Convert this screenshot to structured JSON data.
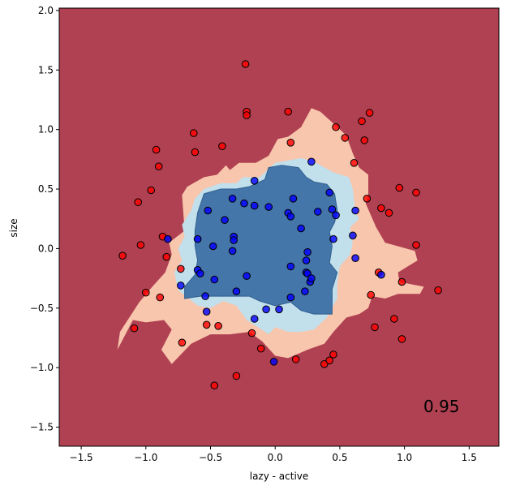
{
  "chart_data": {
    "type": "scatter",
    "title": "",
    "xlabel": "lazy - active",
    "ylabel": "size",
    "xlim": [
      -1.67,
      1.73
    ],
    "ylim": [
      -1.66,
      2.02
    ],
    "xticks": [
      -1.5,
      -1.0,
      -0.5,
      0.0,
      0.5,
      1.0,
      1.5
    ],
    "yticks": [
      -1.5,
      -1.0,
      -0.5,
      0.0,
      0.5,
      1.0,
      1.5,
      2.0
    ],
    "xtick_labels": [
      "−1.5",
      "−1.0",
      "−0.5",
      "0.0",
      "0.5",
      "1.0",
      "1.5"
    ],
    "ytick_labels": [
      "−1.5",
      "−1.0",
      "−0.5",
      "0.0",
      "0.5",
      "1.0",
      "1.5",
      "2.0"
    ],
    "annotation": "0.95",
    "grid": false,
    "colors": {
      "background_region": "#b04152",
      "outer_region": "#f8c5ad",
      "inner_light_region": "#c2dfec",
      "core_region": "#4576a9",
      "red_points": "#ff0000",
      "blue_points": "#0000ff"
    },
    "decision_regions": [
      {
        "level": "outer",
        "polygon": [
          [
            0.1,
            0.94
          ],
          [
            0.2,
            1.02
          ],
          [
            0.28,
            1.18
          ],
          [
            0.35,
            1.15
          ],
          [
            0.45,
            1.05
          ],
          [
            0.55,
            0.95
          ],
          [
            0.6,
            0.8
          ],
          [
            0.65,
            0.68
          ],
          [
            0.72,
            0.62
          ],
          [
            0.72,
            0.45
          ],
          [
            0.7,
            0.38
          ],
          [
            0.78,
            0.18
          ],
          [
            0.85,
            0.05
          ],
          [
            1.08,
            -0.02
          ],
          [
            1.1,
            -0.1
          ],
          [
            0.95,
            -0.2
          ],
          [
            0.96,
            -0.28
          ],
          [
            1.15,
            -0.32
          ],
          [
            1.12,
            -0.38
          ],
          [
            0.95,
            -0.38
          ],
          [
            0.85,
            -0.42
          ],
          [
            0.75,
            -0.4
          ],
          [
            0.72,
            -0.5
          ],
          [
            0.65,
            -0.55
          ],
          [
            0.55,
            -0.58
          ],
          [
            0.45,
            -0.7
          ],
          [
            0.38,
            -0.8
          ],
          [
            0.25,
            -0.85
          ],
          [
            0.1,
            -0.92
          ],
          [
            0.0,
            -0.9
          ],
          [
            -0.1,
            -0.78
          ],
          [
            -0.2,
            -0.7
          ],
          [
            -0.35,
            -0.72
          ],
          [
            -0.5,
            -0.72
          ],
          [
            -0.65,
            -0.8
          ],
          [
            -0.8,
            -0.97
          ],
          [
            -0.88,
            -0.85
          ],
          [
            -0.8,
            -0.68
          ],
          [
            -0.86,
            -0.6
          ],
          [
            -1.0,
            -0.62
          ],
          [
            -1.1,
            -0.6
          ],
          [
            -1.22,
            -0.85
          ],
          [
            -1.2,
            -0.7
          ],
          [
            -1.05,
            -0.45
          ],
          [
            -0.95,
            -0.32
          ],
          [
            -0.85,
            -0.2
          ],
          [
            -0.8,
            -0.05
          ],
          [
            -0.82,
            0.05
          ],
          [
            -0.7,
            0.15
          ],
          [
            -0.72,
            0.45
          ],
          [
            -0.68,
            0.52
          ],
          [
            -0.55,
            0.6
          ],
          [
            -0.45,
            0.62
          ],
          [
            -0.38,
            0.7
          ],
          [
            -0.35,
            0.66
          ],
          [
            -0.28,
            0.72
          ],
          [
            -0.15,
            0.72
          ],
          [
            -0.05,
            0.78
          ],
          [
            0.02,
            0.92
          ]
        ]
      },
      {
        "level": "inner",
        "polygon": [
          [
            -0.12,
            0.6
          ],
          [
            0.0,
            0.72
          ],
          [
            0.2,
            0.76
          ],
          [
            0.3,
            0.73
          ],
          [
            0.45,
            0.64
          ],
          [
            0.57,
            0.6
          ],
          [
            0.6,
            0.5
          ],
          [
            0.62,
            0.3
          ],
          [
            0.65,
            0.25
          ],
          [
            0.58,
            0.18
          ],
          [
            0.6,
            0.05
          ],
          [
            0.58,
            -0.05
          ],
          [
            0.5,
            -0.15
          ],
          [
            0.48,
            -0.3
          ],
          [
            0.48,
            -0.42
          ],
          [
            0.4,
            -0.58
          ],
          [
            0.3,
            -0.68
          ],
          [
            0.2,
            -0.7
          ],
          [
            0.1,
            -0.7
          ],
          [
            0.0,
            -0.66
          ],
          [
            -0.05,
            -0.72
          ],
          [
            -0.12,
            -0.67
          ],
          [
            -0.22,
            -0.6
          ],
          [
            -0.3,
            -0.48
          ],
          [
            -0.4,
            -0.44
          ],
          [
            -0.5,
            -0.5
          ],
          [
            -0.6,
            -0.48
          ],
          [
            -0.75,
            -0.35
          ],
          [
            -0.78,
            -0.2
          ],
          [
            -0.72,
            -0.1
          ],
          [
            -0.75,
            0.0
          ],
          [
            -0.7,
            0.1
          ],
          [
            -0.72,
            0.2
          ],
          [
            -0.65,
            0.32
          ],
          [
            -0.62,
            0.42
          ],
          [
            -0.55,
            0.5
          ],
          [
            -0.42,
            0.55
          ],
          [
            -0.3,
            0.55
          ],
          [
            -0.25,
            0.6
          ]
        ]
      },
      {
        "level": "core",
        "polygon": [
          [
            -0.08,
            0.58
          ],
          [
            -0.05,
            0.68
          ],
          [
            0.05,
            0.7
          ],
          [
            0.18,
            0.68
          ],
          [
            0.24,
            0.6
          ],
          [
            0.3,
            0.56
          ],
          [
            0.4,
            0.54
          ],
          [
            0.46,
            0.46
          ],
          [
            0.48,
            0.32
          ],
          [
            0.46,
            0.22
          ],
          [
            0.42,
            0.14
          ],
          [
            0.44,
            0.02
          ],
          [
            0.42,
            -0.12
          ],
          [
            0.48,
            -0.2
          ],
          [
            0.44,
            -0.34
          ],
          [
            0.44,
            -0.55
          ],
          [
            0.3,
            -0.55
          ],
          [
            0.2,
            -0.52
          ],
          [
            0.12,
            -0.45
          ],
          [
            0.0,
            -0.48
          ],
          [
            -0.12,
            -0.44
          ],
          [
            -0.2,
            -0.4
          ],
          [
            -0.3,
            -0.4
          ],
          [
            -0.45,
            -0.4
          ],
          [
            -0.58,
            -0.4
          ],
          [
            -0.7,
            -0.42
          ],
          [
            -0.7,
            -0.32
          ],
          [
            -0.62,
            -0.22
          ],
          [
            -0.6,
            -0.1
          ],
          [
            -0.62,
            0.02
          ],
          [
            -0.62,
            0.15
          ],
          [
            -0.6,
            0.3
          ],
          [
            -0.55,
            0.46
          ],
          [
            -0.42,
            0.5
          ],
          [
            -0.3,
            0.5
          ],
          [
            -0.2,
            0.52
          ]
        ]
      }
    ],
    "series": [
      {
        "color": "red",
        "points": [
          [
            -0.23,
            1.55
          ],
          [
            -0.22,
            1.15
          ],
          [
            -0.22,
            1.12
          ],
          [
            0.1,
            1.15
          ],
          [
            -0.63,
            0.97
          ],
          [
            -0.41,
            0.86
          ],
          [
            -0.62,
            0.81
          ],
          [
            -0.92,
            0.83
          ],
          [
            -0.9,
            0.69
          ],
          [
            0.12,
            0.89
          ],
          [
            0.47,
            1.02
          ],
          [
            0.54,
            0.93
          ],
          [
            0.67,
            1.07
          ],
          [
            0.69,
            0.91
          ],
          [
            0.73,
            1.14
          ],
          [
            0.61,
            0.72
          ],
          [
            -1.06,
            0.39
          ],
          [
            -0.96,
            0.49
          ],
          [
            -0.87,
            0.1
          ],
          [
            -0.84,
            -0.07
          ],
          [
            -0.73,
            -0.17
          ],
          [
            -1.04,
            0.03
          ],
          [
            -1.18,
            -0.06
          ],
          [
            0.71,
            0.42
          ],
          [
            0.82,
            0.34
          ],
          [
            0.88,
            0.3
          ],
          [
            0.96,
            0.51
          ],
          [
            1.09,
            0.47
          ],
          [
            1.09,
            0.03
          ],
          [
            0.8,
            -0.2
          ],
          [
            0.98,
            -0.28
          ],
          [
            1.26,
            -0.35
          ],
          [
            0.74,
            -0.39
          ],
          [
            0.77,
            -0.66
          ],
          [
            0.92,
            -0.59
          ],
          [
            0.98,
            -0.76
          ],
          [
            -0.89,
            -0.41
          ],
          [
            -1.0,
            -0.37
          ],
          [
            -1.09,
            -0.67
          ],
          [
            -0.72,
            -0.79
          ],
          [
            -0.53,
            -0.64
          ],
          [
            -0.44,
            -0.65
          ],
          [
            -0.18,
            -0.71
          ],
          [
            -0.11,
            -0.84
          ],
          [
            0.16,
            -0.93
          ],
          [
            0.38,
            -0.97
          ],
          [
            0.42,
            -0.94
          ],
          [
            0.45,
            -0.89
          ],
          [
            -0.47,
            -1.15
          ],
          [
            -0.3,
            -1.07
          ]
        ]
      },
      {
        "color": "blue",
        "points": [
          [
            0.28,
            0.73
          ],
          [
            -0.16,
            0.57
          ],
          [
            0.14,
            0.42
          ],
          [
            0.42,
            0.47
          ],
          [
            0.62,
            0.32
          ],
          [
            0.47,
            0.28
          ],
          [
            0.44,
            0.33
          ],
          [
            0.33,
            0.31
          ],
          [
            -0.33,
            0.42
          ],
          [
            -0.24,
            0.38
          ],
          [
            -0.16,
            0.36
          ],
          [
            -0.05,
            0.35
          ],
          [
            0.1,
            0.3
          ],
          [
            0.12,
            0.27
          ],
          [
            -0.39,
            0.24
          ],
          [
            -0.52,
            0.32
          ],
          [
            -0.32,
            0.1
          ],
          [
            -0.32,
            0.07
          ],
          [
            -0.48,
            0.02
          ],
          [
            -0.6,
            0.08
          ],
          [
            0.2,
            0.17
          ],
          [
            0.6,
            0.11
          ],
          [
            0.45,
            0.08
          ],
          [
            0.25,
            -0.03
          ],
          [
            0.62,
            -0.08
          ],
          [
            -0.33,
            -0.02
          ],
          [
            -0.6,
            -0.18
          ],
          [
            -0.58,
            -0.21
          ],
          [
            -0.47,
            -0.26
          ],
          [
            -0.73,
            -0.31
          ],
          [
            -0.22,
            -0.23
          ],
          [
            -0.3,
            -0.36
          ],
          [
            -0.54,
            -0.4
          ],
          [
            0.12,
            -0.15
          ],
          [
            0.24,
            -0.1
          ],
          [
            0.24,
            -0.2
          ],
          [
            0.25,
            -0.21
          ],
          [
            0.27,
            -0.28
          ],
          [
            0.28,
            -0.25
          ],
          [
            0.23,
            -0.36
          ],
          [
            0.12,
            -0.41
          ],
          [
            -0.07,
            -0.51
          ],
          [
            0.03,
            -0.51
          ],
          [
            -0.53,
            -0.53
          ],
          [
            -0.16,
            -0.59
          ],
          [
            0.82,
            -0.22
          ],
          [
            -0.01,
            -0.95
          ],
          [
            -0.83,
            0.08
          ]
        ]
      }
    ]
  }
}
